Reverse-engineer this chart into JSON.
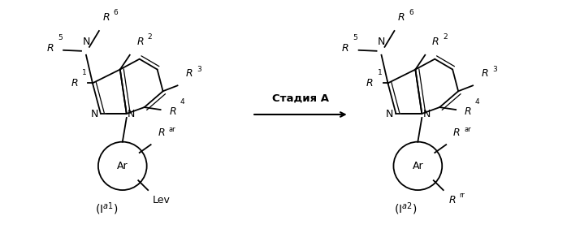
{
  "bg_color": "#ffffff",
  "fig_width": 6.98,
  "fig_height": 2.82,
  "dpi": 100,
  "arrow_label": "Стадия А",
  "label_left": "(I$^{a1}$)",
  "label_right": "(I$^{a2}$)"
}
